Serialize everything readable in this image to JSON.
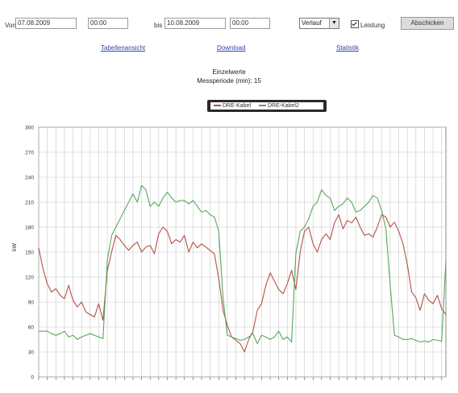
{
  "toolbar": {
    "from_label": "Von",
    "from_date": "07.08.2009",
    "from_time": "00:00",
    "to_label": "bis",
    "to_date": "10.08.2009",
    "to_time": "00:00",
    "select_value": "Verlauf",
    "checkbox_label": "Leistung",
    "checkbox_checked": true,
    "submit_label": "Abschicken"
  },
  "nav": {
    "table_link": "Tabellenansicht",
    "download_link": "Download",
    "stats_link": "Statistik"
  },
  "heading": {
    "title": "Einzelwerte",
    "subtitle": "Messperiode (min): 15"
  },
  "legend": {
    "series_a": "DRE-Kabel",
    "series_b": "DRE-Kabel2"
  },
  "colors": {
    "series_a": "#b35246",
    "series_b": "#58a85a",
    "grid": "#c8c8c8"
  },
  "chart_data": {
    "type": "line",
    "ylabel": "kW",
    "ylim": [
      0,
      300
    ],
    "yticks": [
      0,
      30,
      60,
      90,
      120,
      150,
      180,
      210,
      240,
      270,
      300
    ],
    "x_count": 96,
    "grid": true,
    "legend_position": "top-center",
    "series": [
      {
        "name": "DRE-Kabel",
        "color": "#b35246",
        "values": [
          155,
          130,
          112,
          102,
          106,
          98,
          94,
          110,
          92,
          84,
          90,
          78,
          75,
          72,
          88,
          68,
          128,
          150,
          170,
          165,
          158,
          152,
          158,
          162,
          150,
          156,
          158,
          148,
          172,
          180,
          175,
          160,
          165,
          162,
          170,
          150,
          162,
          155,
          160,
          156,
          152,
          148,
          118,
          80,
          62,
          48,
          44,
          40,
          30,
          45,
          55,
          80,
          88,
          110,
          125,
          115,
          105,
          100,
          112,
          128,
          105,
          150,
          175,
          180,
          160,
          150,
          165,
          172,
          165,
          185,
          195,
          178,
          188,
          185,
          192,
          180,
          170,
          172,
          168,
          180,
          195,
          192,
          180,
          186,
          175,
          160,
          135,
          102,
          95,
          80,
          100,
          92,
          88,
          98,
          82,
          75
        ]
      },
      {
        "name": "DRE-Kabel2",
        "color": "#58a85a",
        "values": [
          55,
          55,
          55,
          52,
          50,
          52,
          55,
          48,
          50,
          45,
          48,
          50,
          52,
          50,
          48,
          46,
          140,
          170,
          180,
          190,
          200,
          210,
          220,
          210,
          230,
          225,
          205,
          210,
          205,
          215,
          222,
          215,
          210,
          212,
          212,
          208,
          212,
          205,
          198,
          200,
          195,
          192,
          175,
          95,
          50,
          48,
          46,
          44,
          45,
          48,
          52,
          40,
          50,
          48,
          45,
          48,
          55,
          45,
          48,
          42,
          148,
          175,
          180,
          190,
          205,
          210,
          225,
          218,
          215,
          200,
          205,
          208,
          215,
          210,
          198,
          200,
          205,
          210,
          218,
          215,
          200,
          178,
          110,
          50,
          48,
          45,
          45,
          46,
          44,
          42,
          43,
          42,
          45,
          44,
          43,
          140
        ]
      }
    ]
  }
}
